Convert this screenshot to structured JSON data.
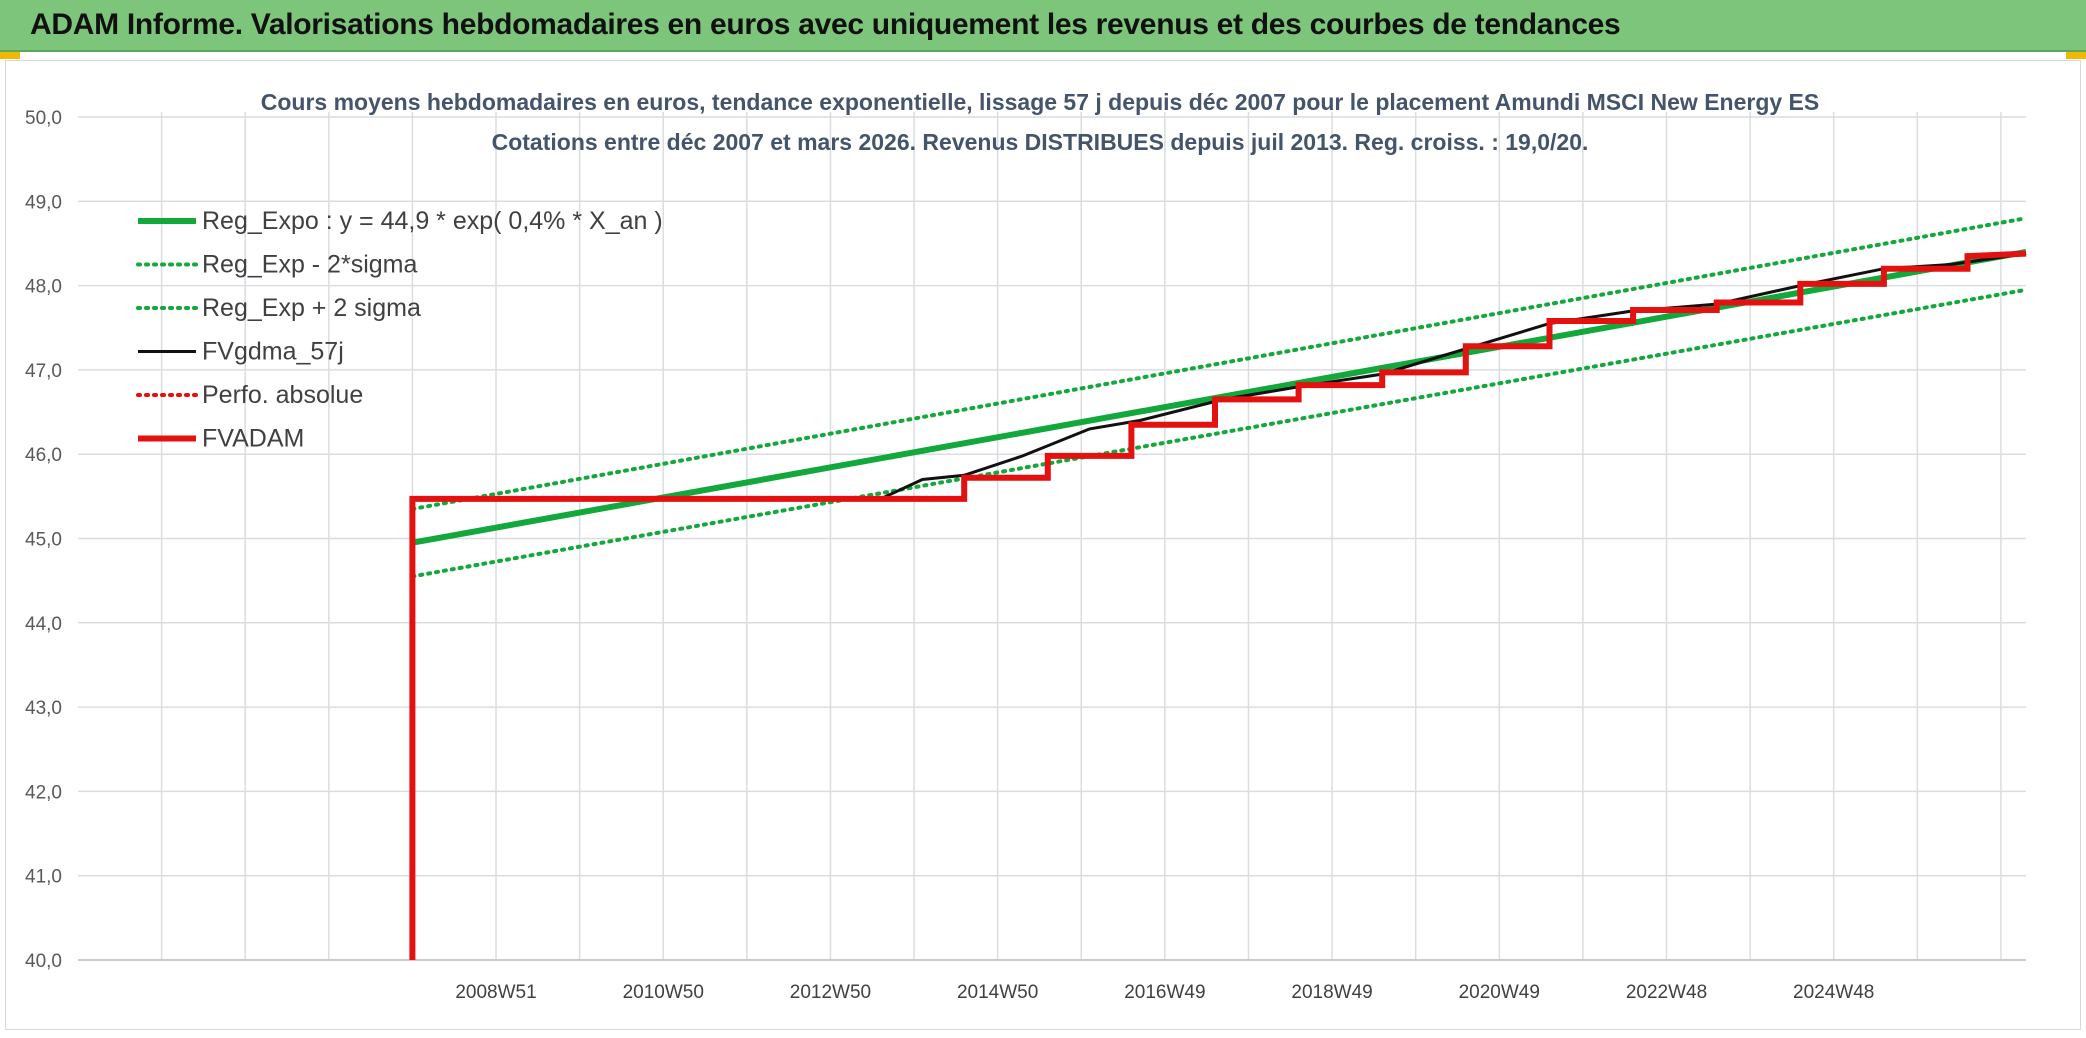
{
  "header": {
    "title": "ADAM Informe. Valorisations hebdomadaires en euros avec uniquement les revenus et des courbes de tendances"
  },
  "colors": {
    "header_bg": "#7cc57a",
    "green": "#12a83c",
    "red": "#e3110f",
    "black": "#111111",
    "grid": "#d9dde3"
  },
  "chart_data": {
    "type": "line",
    "title_line1": "Cours moyens hebdomadaires en euros, tendance exponentielle, lissage 57 j depuis déc 2007 pour le placement Amundi MSCI New Energy ES",
    "title_line2": "Cotations entre déc 2007 et mars 2026. Revenus DISTRIBUES depuis juil 2013. Reg. croiss. : 19,0/20.",
    "ylim": [
      40,
      50
    ],
    "y_ticks": [
      "40,0",
      "41,0",
      "42,0",
      "43,0",
      "44,0",
      "45,0",
      "46,0",
      "47,0",
      "48,0",
      "49,0",
      "50,0"
    ],
    "xlim": [
      2002.9,
      2026.2
    ],
    "x_tick_positions": [
      2007.9,
      2009.9,
      2011.9,
      2013.9,
      2015.9,
      2017.9,
      2019.9,
      2021.9,
      2023.9
    ],
    "x_tick_labels": [
      "2008W51",
      "2010W50",
      "2012W50",
      "2014W50",
      "2016W49",
      "2018W49",
      "2020W49",
      "2022W48",
      "2024W48"
    ],
    "grid": true,
    "legend_position": "top-left",
    "legend": [
      {
        "label": "Reg_Expo : y = 44,9 * exp( 0,4% *  X_an )",
        "color": "#12a83c",
        "style": "solid-thick"
      },
      {
        "label": "Reg_Exp - 2*sigma",
        "color": "#12a83c",
        "style": "dotted"
      },
      {
        "label": "Reg_Exp + 2 sigma",
        "color": "#12a83c",
        "style": "dotted"
      },
      {
        "label": "FVgdma_57j",
        "color": "#111111",
        "style": "solid"
      },
      {
        "label": "Perfo. absolue",
        "color": "#e3110f",
        "style": "dotted"
      },
      {
        "label": "FVADAM",
        "color": "#e3110f",
        "style": "solid-thick"
      }
    ],
    "series": [
      {
        "name": "Reg_Expo : y = 44,9 * exp( 0,4% *  X_an )",
        "x": [
          2006.9,
          2026.2
        ],
        "values": [
          44.95,
          48.4
        ]
      },
      {
        "name": "Reg_Exp - 2*sigma",
        "x": [
          2006.9,
          2026.2
        ],
        "values": [
          44.55,
          47.95
        ]
      },
      {
        "name": "Reg_Exp + 2 sigma",
        "x": [
          2006.9,
          2026.2
        ],
        "values": [
          45.35,
          48.8
        ]
      },
      {
        "name": "FVgdma_57j",
        "x": [
          2006.9,
          2012.5,
          2013.0,
          2013.5,
          2014.2,
          2015.0,
          2015.6,
          2016.6,
          2017.5,
          2018.5,
          2019.5,
          2020.5,
          2021.5,
          2022.5,
          2023.5,
          2024.5,
          2025.3,
          2026.2
        ],
        "values": [
          45.47,
          45.47,
          45.7,
          45.75,
          45.98,
          46.3,
          46.4,
          46.65,
          46.8,
          46.95,
          47.25,
          47.55,
          47.7,
          47.78,
          48.0,
          48.2,
          48.25,
          48.38
        ]
      },
      {
        "name": "FVADAM",
        "x": [
          2006.9,
          2006.9,
          2013.5,
          2013.5,
          2014.5,
          2014.5,
          2015.5,
          2015.5,
          2016.5,
          2016.5,
          2017.5,
          2017.5,
          2018.5,
          2018.5,
          2019.5,
          2019.5,
          2020.5,
          2020.5,
          2021.5,
          2021.5,
          2022.5,
          2022.5,
          2023.5,
          2023.5,
          2024.5,
          2024.5,
          2025.5,
          2025.5,
          2026.2
        ],
        "values": [
          40.0,
          45.47,
          45.47,
          45.72,
          45.72,
          45.98,
          45.98,
          46.35,
          46.35,
          46.65,
          46.65,
          46.82,
          46.82,
          46.97,
          46.97,
          47.28,
          47.28,
          47.58,
          47.58,
          47.71,
          47.71,
          47.8,
          47.8,
          48.02,
          48.02,
          48.2,
          48.2,
          48.35,
          48.38
        ]
      }
    ]
  }
}
